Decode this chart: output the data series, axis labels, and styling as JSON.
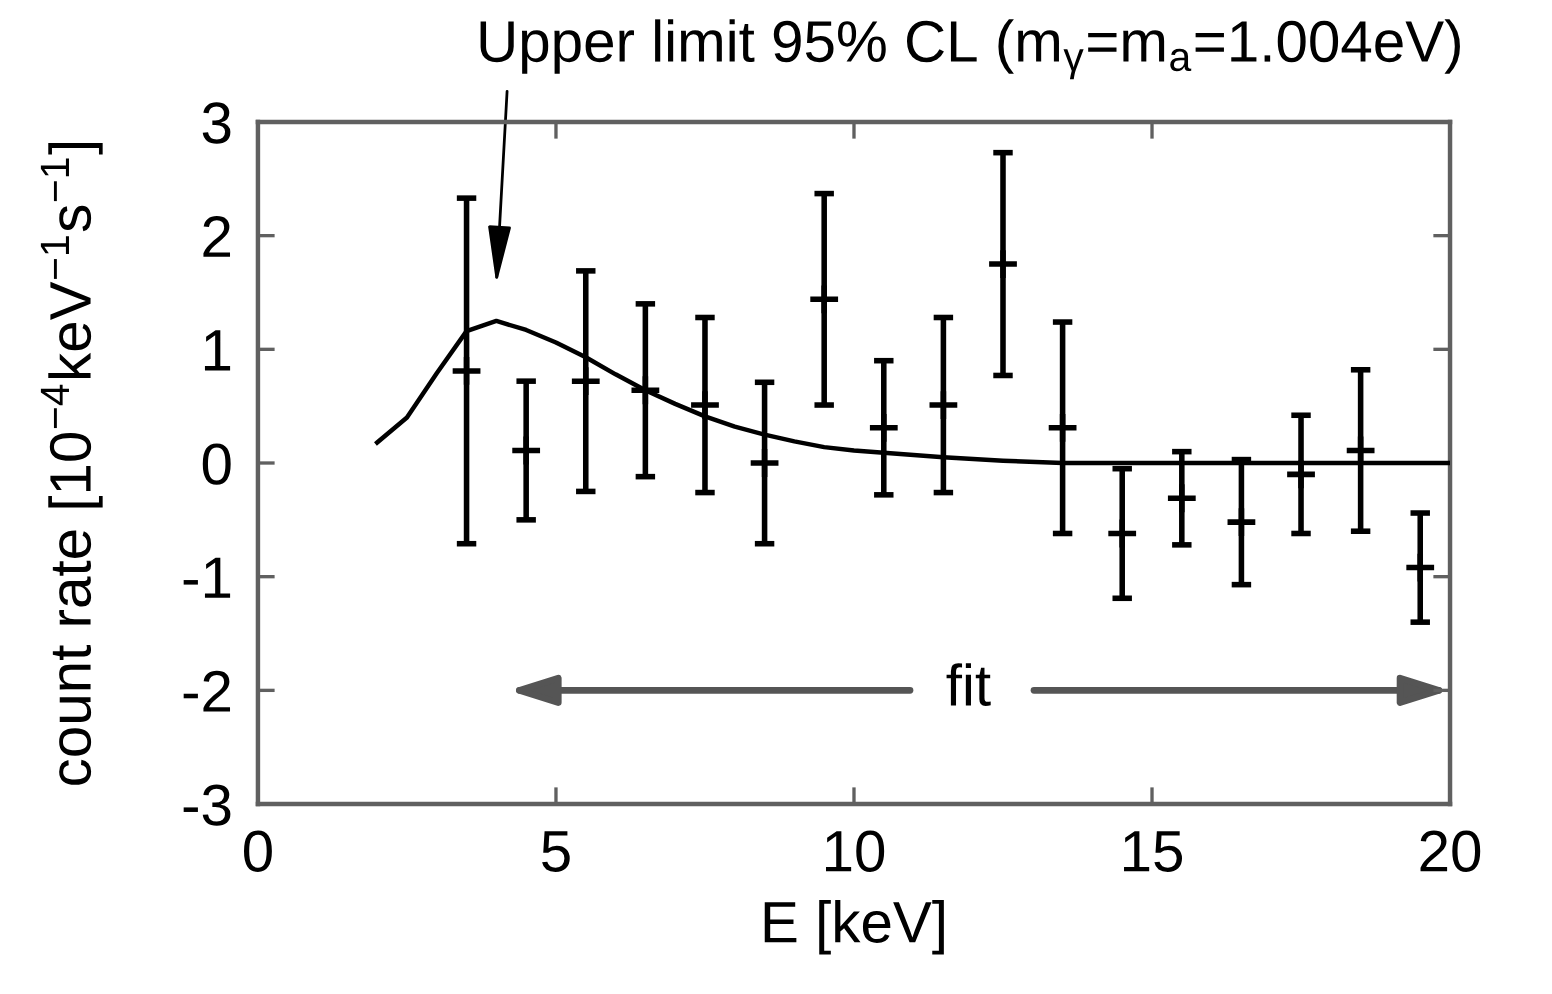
{
  "chart_data": {
    "type": "scatter",
    "xlabel": "E [keV]",
    "ylabel": "count rate [10$^{−4}$keV$^{−1}$s$^{−1}$]",
    "xlim": [
      0,
      20
    ],
    "ylim": [
      -3,
      3
    ],
    "xticks": [
      0,
      5,
      10,
      15,
      20
    ],
    "yticks": [
      -3,
      -2,
      -1,
      0,
      1,
      2,
      3
    ],
    "grid": false,
    "series": [
      {
        "marker": "cross",
        "color": "#000000",
        "x": [
          3.5,
          4.5,
          5.5,
          6.5,
          7.5,
          8.5,
          9.5,
          10.5,
          11.5,
          12.5,
          13.5,
          14.5,
          15.5,
          16.5,
          17.5,
          18.5,
          19.5
        ],
        "values": [
          0.81,
          0.11,
          0.72,
          0.64,
          0.51,
          0.0,
          1.44,
          0.31,
          0.51,
          1.75,
          0.31,
          -0.62,
          -0.31,
          -0.52,
          -0.1,
          0.11,
          -0.92
        ],
        "errors": [
          1.52,
          0.61,
          0.97,
          0.76,
          0.77,
          0.71,
          0.93,
          0.59,
          0.77,
          0.98,
          0.93,
          0.57,
          0.41,
          0.55,
          0.52,
          0.71,
          0.48
        ]
      },
      {
        "type": "line",
        "color": "#000000",
        "x": [
          2,
          2.5,
          3,
          3.5,
          4,
          4.5,
          5,
          5.5,
          6,
          6.5,
          7,
          7.5,
          8,
          8.5,
          9,
          9.5,
          10,
          10.5,
          11.5,
          12.5,
          13.5,
          20
        ],
        "values": [
          0.18,
          0.4,
          0.79,
          1.16,
          1.25,
          1.17,
          1.06,
          0.93,
          0.78,
          0.64,
          0.52,
          0.41,
          0.32,
          0.25,
          0.19,
          0.14,
          0.11,
          0.09,
          0.05,
          0.02,
          0,
          0
        ]
      }
    ],
    "annotations": [
      "Upper limit 95% CL (m$_{γ}$=m$_{a}$=1.004eV)",
      "fit"
    ]
  }
}
